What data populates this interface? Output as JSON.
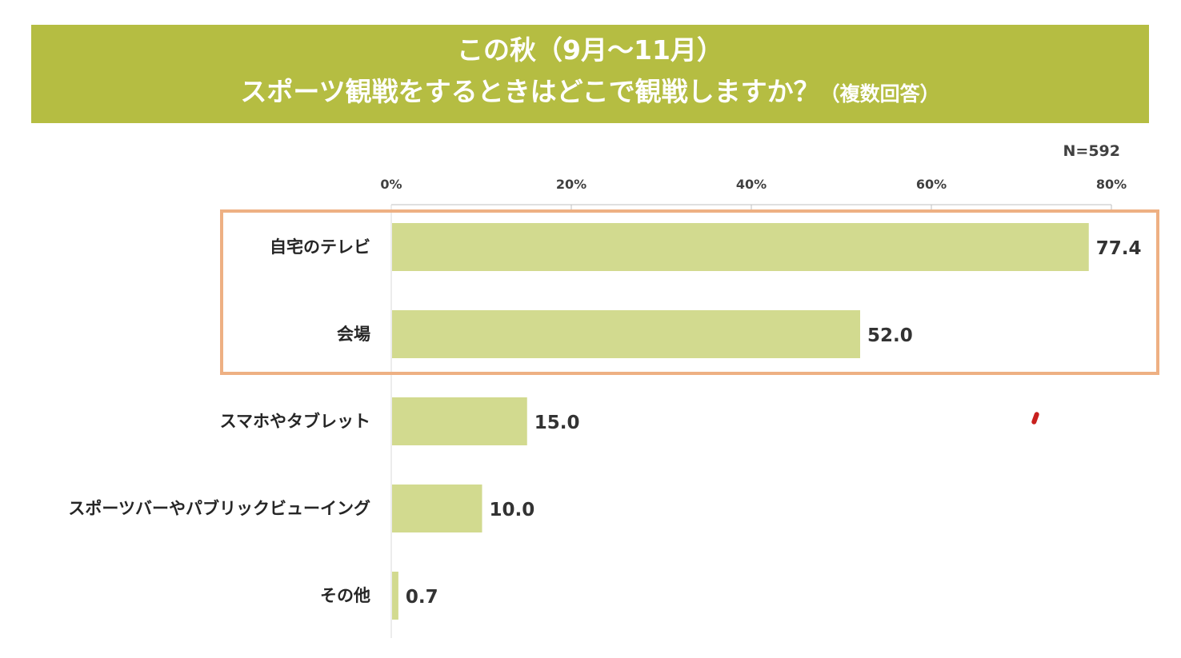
{
  "title": {
    "line1": "この秋（9月～11月）",
    "line2": "スポーツ観戦をするときはどこで観戦しますか？",
    "note": "（複数回答）"
  },
  "sample_size": "N=592",
  "colors": {
    "banner": "#b5bd42",
    "bar": "#d2da8f",
    "highlight_border": "#eeb083",
    "annotation_mark": "#c8201e"
  },
  "chart_data": {
    "type": "bar",
    "orientation": "horizontal",
    "title": "この秋（9月～11月） スポーツ観戦をするときはどこで観戦しますか？（複数回答）",
    "xlabel": "",
    "ylabel": "",
    "xlim": [
      0,
      80
    ],
    "ticks": [
      0,
      20,
      40,
      60,
      80
    ],
    "tick_labels": [
      "0%",
      "20%",
      "40%",
      "60%",
      "80%"
    ],
    "categories": [
      "自宅のテレビ",
      "会場",
      "スマホやタブレット",
      "スポーツバーやパブリックビューイング",
      "その他"
    ],
    "values": [
      77.4,
      52.0,
      15.0,
      10.0,
      0.7
    ],
    "value_labels": [
      "77.4",
      "52.0",
      "15.0",
      "10.0",
      "0.7"
    ],
    "highlighted_categories": [
      "自宅のテレビ",
      "会場"
    ]
  }
}
